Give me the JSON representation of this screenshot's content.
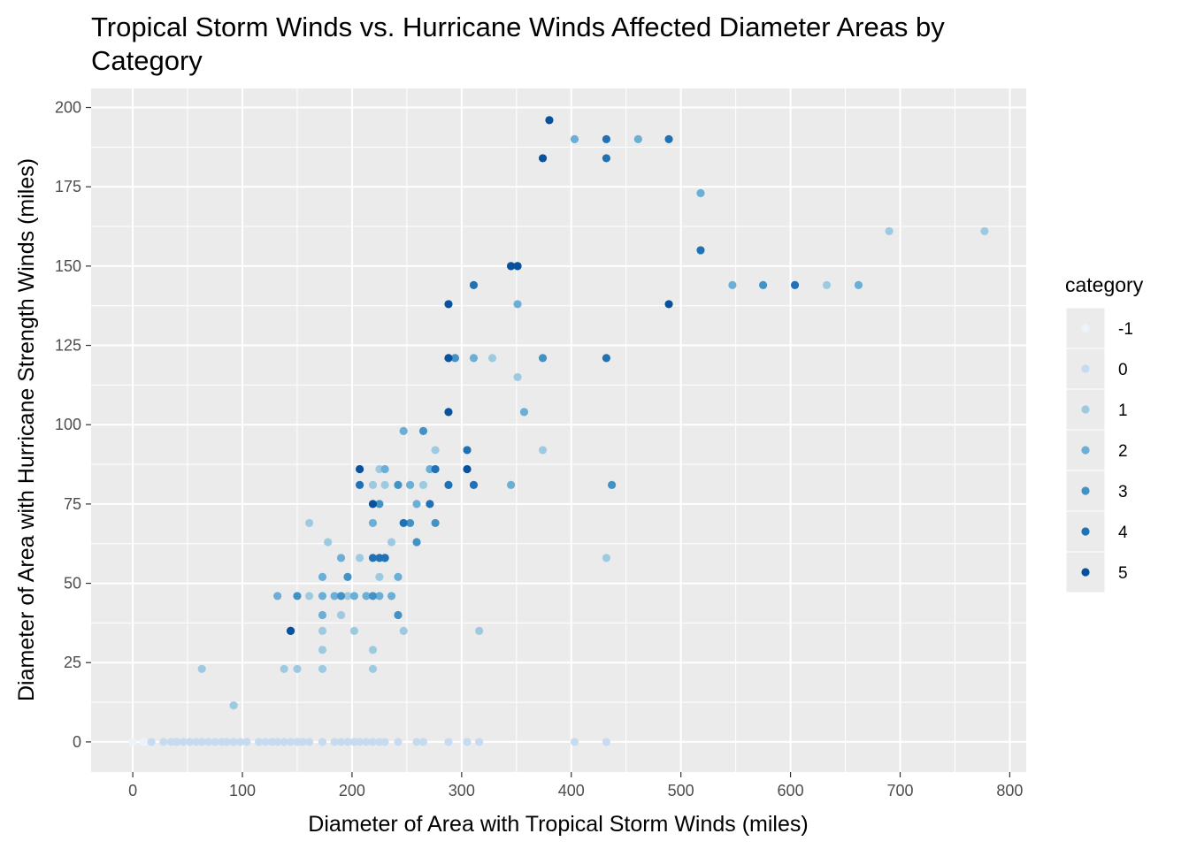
{
  "chart_data": {
    "type": "scatter",
    "title": "Tropical Storm Winds vs. Hurricane Winds Affected Diameter Areas by Category",
    "title_lines": [
      "Tropical Storm Winds vs. Hurricane Winds Affected Diameter Areas by",
      "Category"
    ],
    "xlabel": "Diameter of Area with Tropical Storm Winds (miles)",
    "ylabel": "Diameter of Area with Hurricane Strength Winds (miles)",
    "xlim": [
      -38,
      815
    ],
    "ylim": [
      -9.5,
      206
    ],
    "x_ticks": [
      0,
      100,
      200,
      300,
      400,
      500,
      600,
      700,
      800
    ],
    "y_ticks": [
      0,
      25,
      50,
      75,
      100,
      125,
      150,
      175,
      200
    ],
    "x_tick_labels": [
      "0",
      "100",
      "200",
      "300",
      "400",
      "500",
      "600",
      "700",
      "800"
    ],
    "y_tick_labels": [
      "0",
      "25",
      "50",
      "75",
      "100",
      "125",
      "150",
      "175",
      "200"
    ],
    "grid": true,
    "legend": {
      "title": "category",
      "position": "right",
      "entries": [
        {
          "label": "-1",
          "color": "#eef3fb"
        },
        {
          "label": "0",
          "color": "#c6dbef"
        },
        {
          "label": "1",
          "color": "#9ecae1"
        },
        {
          "label": "2",
          "color": "#6baed6"
        },
        {
          "label": "3",
          "color": "#4292c6"
        },
        {
          "label": "4",
          "color": "#2171b5"
        },
        {
          "label": "5",
          "color": "#08519c"
        }
      ]
    },
    "series": [
      {
        "category": "-1",
        "points": [
          [
            0,
            0
          ],
          [
            10,
            0
          ]
        ]
      },
      {
        "category": "0",
        "points": [
          [
            17,
            0
          ],
          [
            28,
            0
          ],
          [
            35,
            0
          ],
          [
            40,
            0
          ],
          [
            46,
            0
          ],
          [
            52,
            0
          ],
          [
            58,
            0
          ],
          [
            63,
            0
          ],
          [
            69,
            0
          ],
          [
            75,
            0
          ],
          [
            81,
            0
          ],
          [
            86,
            0
          ],
          [
            92,
            0
          ],
          [
            98,
            0
          ],
          [
            104,
            0
          ],
          [
            115,
            0
          ],
          [
            121,
            0
          ],
          [
            127,
            0
          ],
          [
            132,
            0
          ],
          [
            138,
            0
          ],
          [
            144,
            0
          ],
          [
            150,
            0
          ],
          [
            155,
            0
          ],
          [
            161,
            0
          ],
          [
            173,
            0
          ],
          [
            184,
            0
          ],
          [
            190,
            0
          ],
          [
            196,
            0
          ],
          [
            202,
            0
          ],
          [
            207,
            0
          ],
          [
            213,
            0
          ],
          [
            219,
            0
          ],
          [
            225,
            0
          ],
          [
            230,
            0
          ],
          [
            242,
            0
          ],
          [
            259,
            0
          ],
          [
            265,
            0
          ],
          [
            288,
            0
          ],
          [
            305,
            0
          ],
          [
            316,
            0
          ],
          [
            403,
            0
          ],
          [
            432,
            0
          ]
        ]
      },
      {
        "category": "1",
        "points": [
          [
            63,
            23
          ],
          [
            92,
            11.5
          ],
          [
            138,
            23
          ],
          [
            150,
            23
          ],
          [
            161,
            46
          ],
          [
            161,
            69
          ],
          [
            173,
            23
          ],
          [
            173,
            29
          ],
          [
            173,
            35
          ],
          [
            178,
            63
          ],
          [
            190,
            40
          ],
          [
            196,
            46
          ],
          [
            202,
            35
          ],
          [
            207,
            58
          ],
          [
            219,
            23
          ],
          [
            219,
            29
          ],
          [
            219,
            81
          ],
          [
            225,
            86
          ],
          [
            225,
            52
          ],
          [
            230,
            81
          ],
          [
            236,
            63
          ],
          [
            247,
            35
          ],
          [
            265,
            81
          ],
          [
            276,
            92
          ],
          [
            316,
            35
          ],
          [
            328,
            121
          ],
          [
            351,
            115
          ],
          [
            374,
            92
          ],
          [
            432,
            58
          ],
          [
            633,
            144
          ],
          [
            690,
            161
          ],
          [
            777,
            161
          ]
        ]
      },
      {
        "category": "2",
        "points": [
          [
            132,
            46
          ],
          [
            173,
            40
          ],
          [
            173,
            46
          ],
          [
            173,
            52
          ],
          [
            184,
            46
          ],
          [
            190,
            58
          ],
          [
            202,
            46
          ],
          [
            213,
            46
          ],
          [
            219,
            69
          ],
          [
            225,
            46
          ],
          [
            230,
            86
          ],
          [
            236,
            46
          ],
          [
            242,
            52
          ],
          [
            247,
            98
          ],
          [
            253,
            81
          ],
          [
            259,
            75
          ],
          [
            271,
            86
          ],
          [
            311,
            121
          ],
          [
            345,
            81
          ],
          [
            351,
            138
          ],
          [
            357,
            104
          ],
          [
            403,
            190
          ],
          [
            461,
            190
          ],
          [
            518,
            173
          ],
          [
            547,
            144
          ],
          [
            662,
            144
          ]
        ]
      },
      {
        "category": "3",
        "points": [
          [
            150,
            46
          ],
          [
            190,
            46
          ],
          [
            196,
            52
          ],
          [
            219,
            46
          ],
          [
            225,
            75
          ],
          [
            230,
            58
          ],
          [
            242,
            40
          ],
          [
            242,
            81
          ],
          [
            253,
            69
          ],
          [
            259,
            63
          ],
          [
            265,
            98
          ],
          [
            276,
            69
          ],
          [
            294,
            121
          ],
          [
            374,
            121
          ],
          [
            437,
            81
          ],
          [
            575,
            144
          ]
        ]
      },
      {
        "category": "4",
        "points": [
          [
            144,
            35
          ],
          [
            207,
            81
          ],
          [
            219,
            58
          ],
          [
            225,
            58
          ],
          [
            230,
            58
          ],
          [
            247,
            69
          ],
          [
            271,
            75
          ],
          [
            276,
            86
          ],
          [
            288,
            81
          ],
          [
            305,
            92
          ],
          [
            311,
            81
          ],
          [
            311,
            144
          ],
          [
            345,
            150
          ],
          [
            351,
            150
          ],
          [
            432,
            184
          ],
          [
            432,
            190
          ],
          [
            432,
            121
          ],
          [
            489,
            190
          ],
          [
            518,
            155
          ],
          [
            604,
            144
          ]
        ]
      },
      {
        "category": "5",
        "points": [
          [
            144,
            35
          ],
          [
            207,
            86
          ],
          [
            219,
            75
          ],
          [
            288,
            104
          ],
          [
            288,
            121
          ],
          [
            288,
            138
          ],
          [
            305,
            86
          ],
          [
            345,
            150
          ],
          [
            351,
            150
          ],
          [
            374,
            184
          ],
          [
            380,
            196
          ],
          [
            489,
            138
          ]
        ]
      }
    ]
  }
}
